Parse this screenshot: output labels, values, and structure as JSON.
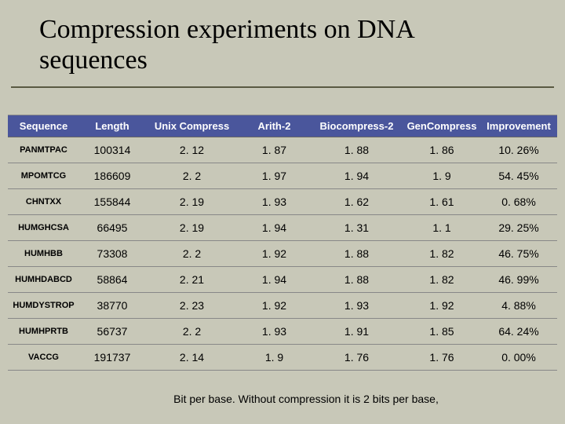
{
  "title": "Compression experiments on DNA sequences",
  "footnote": "Bit per base. Without compression it  is 2 bits per base,",
  "table": {
    "columns": [
      "Sequence",
      "Length",
      "Unix Compress",
      "Arith-2",
      "Biocompress-2",
      "GenCompress",
      "Improvement"
    ],
    "rows": [
      {
        "seq": "PANMTPAC",
        "len": "100314",
        "uc": "2. 12",
        "a2": "1. 87",
        "bc": "1. 88",
        "gc": "1. 86",
        "imp": "10. 26%"
      },
      {
        "seq": "MPOMTCG",
        "len": "186609",
        "uc": "2. 2",
        "a2": "1. 97",
        "bc": "1. 94",
        "gc": "1. 9",
        "imp": "54. 45%"
      },
      {
        "seq": "CHNTXX",
        "len": "155844",
        "uc": "2. 19",
        "a2": "1. 93",
        "bc": "1. 62",
        "gc": "1. 61",
        "imp": "0. 68%"
      },
      {
        "seq": "HUMGHCSA",
        "len": "66495",
        "uc": "2. 19",
        "a2": "1. 94",
        "bc": "1. 31",
        "gc": "1. 1",
        "imp": "29. 25%"
      },
      {
        "seq": "HUMHBB",
        "len": "73308",
        "uc": "2. 2",
        "a2": "1. 92",
        "bc": "1. 88",
        "gc": "1. 82",
        "imp": "46. 75%"
      },
      {
        "seq": "HUMHDABCD",
        "len": "58864",
        "uc": "2. 21",
        "a2": "1. 94",
        "bc": "1. 88",
        "gc": "1. 82",
        "imp": "46. 99%"
      },
      {
        "seq": "HUMDYSTROP",
        "len": "38770",
        "uc": "2. 23",
        "a2": "1. 92",
        "bc": "1. 93",
        "gc": "1. 92",
        "imp": "4. 88%"
      },
      {
        "seq": "HUMHPRTB",
        "len": "56737",
        "uc": "2. 2",
        "a2": "1. 93",
        "bc": "1. 91",
        "gc": "1. 85",
        "imp": "64. 24%"
      },
      {
        "seq": "VACCG",
        "len": "191737",
        "uc": "2. 14",
        "a2": "1. 9",
        "bc": "1. 76",
        "gc": "1. 76",
        "imp": "0. 00%"
      }
    ],
    "header_bg": "#4a569c",
    "header_fg": "#ffffff",
    "cell_fg": "#000000",
    "border_color": "#888888"
  }
}
